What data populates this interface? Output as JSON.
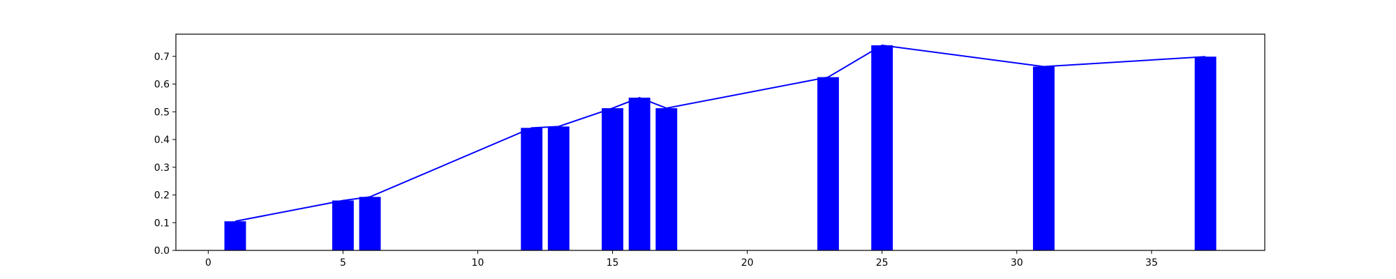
{
  "chart_data": {
    "type": "bar",
    "x": [
      1,
      5,
      6,
      12,
      13,
      15,
      16,
      17,
      23,
      25,
      31,
      37
    ],
    "values": [
      0.105,
      0.18,
      0.193,
      0.442,
      0.447,
      0.513,
      0.551,
      0.513,
      0.625,
      0.74,
      0.663,
      0.699
    ],
    "line_overlay": true,
    "xlim": [
      -1.2,
      39.2
    ],
    "ylim": [
      0,
      0.78
    ],
    "xticks": [
      0,
      5,
      10,
      15,
      20,
      25,
      30,
      35
    ],
    "yticks": [
      0.0,
      0.1,
      0.2,
      0.3,
      0.4,
      0.5,
      0.6,
      0.7
    ],
    "xtick_labels": [
      "0",
      "5",
      "10",
      "15",
      "20",
      "25",
      "30",
      "35"
    ],
    "ytick_labels": [
      "0.0",
      "0.1",
      "0.2",
      "0.3",
      "0.4",
      "0.5",
      "0.6",
      "0.7"
    ],
    "bar_color": "#0000ff",
    "line_color": "#0000ff",
    "grid": false,
    "title": "",
    "xlabel": "",
    "ylabel": ""
  }
}
